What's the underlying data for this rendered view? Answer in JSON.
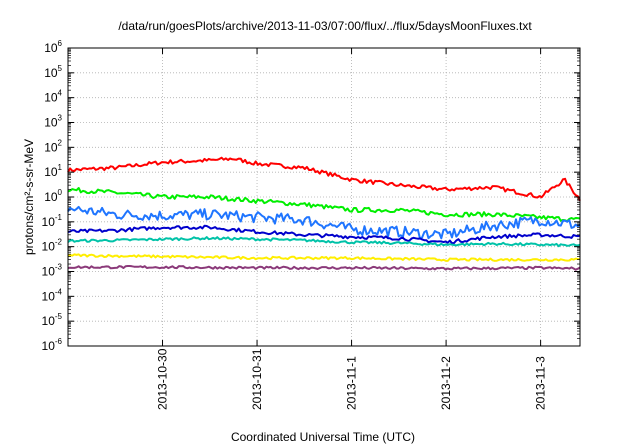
{
  "chart_data": {
    "type": "line",
    "title": "/data/run/goesPlots/archive/2013-11-03/07:00/flux/../flux/5daysMoonFluxes.txt",
    "xlabel": "Coordinated Universal Time (UTC)",
    "ylabel": "protons/cm²-s-sr-MeV",
    "yscale": "log",
    "ylim_exponents": [
      -6,
      6
    ],
    "y_tick_labels": [
      "10-6",
      "10-5",
      "10-4",
      "10-3",
      "10-2",
      "10-1",
      "100",
      "101",
      "102",
      "103",
      "104",
      "105",
      "106"
    ],
    "x_range_days": [
      "2013-10-29 00:00",
      "2013-11-03 10:00"
    ],
    "x_ticks": [
      "2013-10-30",
      "2013-10-31",
      "2013-11-1",
      "2013-11-2",
      "2013-11-3"
    ],
    "grid": true,
    "legend": "none",
    "series": [
      {
        "color": "#ff0000",
        "points": [
          [
            "2013-10-29 00:00",
            12
          ],
          [
            "2013-10-29 12:00",
            15
          ],
          [
            "2013-10-30 00:00",
            25
          ],
          [
            "2013-10-30 12:00",
            30
          ],
          [
            "2013-10-30 18:00",
            35
          ],
          [
            "2013-10-31 00:00",
            22
          ],
          [
            "2013-10-31 12:00",
            15
          ],
          [
            "2013-11-1 00:00",
            5
          ],
          [
            "2013-11-1 12:00",
            3
          ],
          [
            "2013-11-2 00:00",
            2
          ],
          [
            "2013-11-2 12:00",
            2.5
          ],
          [
            "2013-11-3 00:00",
            1
          ],
          [
            "2013-11-3 06:00",
            5
          ],
          [
            "2013-11-3 10:00",
            0.8
          ]
        ]
      },
      {
        "color": "#00ee00",
        "points": [
          [
            "2013-10-29 00:00",
            2
          ],
          [
            "2013-10-29 12:00",
            1.5
          ],
          [
            "2013-10-30 00:00",
            1
          ],
          [
            "2013-10-30 12:00",
            1
          ],
          [
            "2013-10-31 00:00",
            0.7
          ],
          [
            "2013-10-31 12:00",
            0.5
          ],
          [
            "2013-11-1 00:00",
            0.3
          ],
          [
            "2013-11-1 12:00",
            0.3
          ],
          [
            "2013-11-2 00:00",
            0.2
          ],
          [
            "2013-11-2 12:00",
            0.2
          ],
          [
            "2013-11-3 00:00",
            0.15
          ],
          [
            "2013-11-3 10:00",
            0.12
          ]
        ]
      },
      {
        "color": "#1f75ff",
        "points": [
          [
            "2013-10-29 00:00",
            0.35
          ],
          [
            "2013-10-29 12:00",
            0.2
          ],
          [
            "2013-10-30 00:00",
            0.18
          ],
          [
            "2013-10-30 12:00",
            0.2
          ],
          [
            "2013-10-31 00:00",
            0.15
          ],
          [
            "2013-10-31 12:00",
            0.12
          ],
          [
            "2013-11-1 00:00",
            0.05
          ],
          [
            "2013-11-1 12:00",
            0.04
          ],
          [
            "2013-11-2 00:00",
            0.03
          ],
          [
            "2013-11-2 12:00",
            0.07
          ],
          [
            "2013-11-3 00:00",
            0.12
          ],
          [
            "2013-11-3 10:00",
            0.07
          ]
        ]
      },
      {
        "color": "#0000cc",
        "points": [
          [
            "2013-10-29 00:00",
            0.04
          ],
          [
            "2013-10-29 12:00",
            0.045
          ],
          [
            "2013-10-30 00:00",
            0.06
          ],
          [
            "2013-10-30 12:00",
            0.06
          ],
          [
            "2013-10-31 00:00",
            0.04
          ],
          [
            "2013-10-31 12:00",
            0.03
          ],
          [
            "2013-11-1 00:00",
            0.025
          ],
          [
            "2013-11-1 12:00",
            0.022
          ],
          [
            "2013-11-2 00:00",
            0.015
          ],
          [
            "2013-11-2 12:00",
            0.025
          ],
          [
            "2013-11-3 00:00",
            0.03
          ],
          [
            "2013-11-3 10:00",
            0.025
          ]
        ]
      },
      {
        "color": "#00c2a8",
        "points": [
          [
            "2013-10-29 00:00",
            0.017
          ],
          [
            "2013-10-29 12:00",
            0.018
          ],
          [
            "2013-10-30 00:00",
            0.02
          ],
          [
            "2013-10-30 12:00",
            0.022
          ],
          [
            "2013-10-31 00:00",
            0.02
          ],
          [
            "2013-10-31 12:00",
            0.018
          ],
          [
            "2013-11-1 00:00",
            0.015
          ],
          [
            "2013-11-1 12:00",
            0.014
          ],
          [
            "2013-11-2 00:00",
            0.012
          ],
          [
            "2013-11-2 12:00",
            0.013
          ],
          [
            "2013-11-3 00:00",
            0.012
          ],
          [
            "2013-11-3 10:00",
            0.011
          ]
        ]
      },
      {
        "color": "#ffee00",
        "points": [
          [
            "2013-10-29 00:00",
            0.0045
          ],
          [
            "2013-10-30 00:00",
            0.004
          ],
          [
            "2013-10-31 00:00",
            0.0035
          ],
          [
            "2013-11-1 00:00",
            0.0035
          ],
          [
            "2013-11-2 00:00",
            0.003
          ],
          [
            "2013-11-3 00:00",
            0.003
          ],
          [
            "2013-11-3 10:00",
            0.003
          ]
        ]
      },
      {
        "color": "#8b3a7a",
        "points": [
          [
            "2013-10-29 00:00",
            0.0015
          ],
          [
            "2013-10-30 00:00",
            0.0015
          ],
          [
            "2013-10-31 00:00",
            0.0014
          ],
          [
            "2013-11-1 00:00",
            0.0014
          ],
          [
            "2013-11-2 00:00",
            0.0013
          ],
          [
            "2013-11-3 00:00",
            0.0014
          ],
          [
            "2013-11-3 10:00",
            0.0013
          ]
        ]
      }
    ]
  }
}
